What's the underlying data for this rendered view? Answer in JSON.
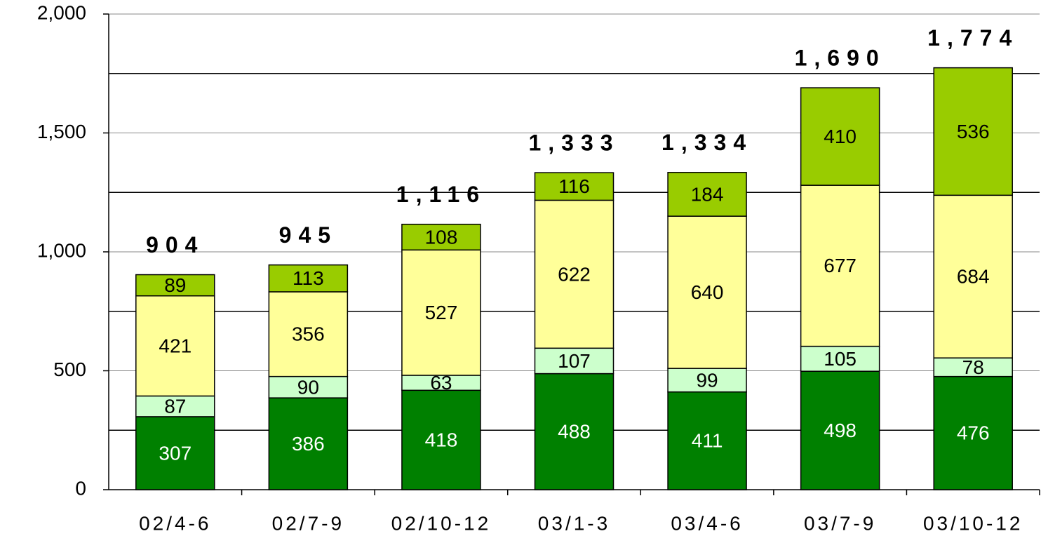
{
  "chart_data": {
    "type": "stacked_bar",
    "categories": [
      "02/4-6",
      "02/7-9",
      "02/10-12",
      "03/1-3",
      "03/4-6",
      "03/7-9",
      "03/10-12"
    ],
    "series": [
      {
        "color": "#008000",
        "values": [
          307,
          386,
          418,
          488,
          411,
          498,
          476
        ]
      },
      {
        "color": "#ccffcc",
        "values": [
          87,
          90,
          63,
          107,
          99,
          105,
          78
        ]
      },
      {
        "color": "#ffff99",
        "values": [
          421,
          356,
          527,
          622,
          640,
          677,
          684
        ]
      },
      {
        "color": "#99cc00",
        "values": [
          89,
          113,
          108,
          116,
          184,
          410,
          536
        ]
      }
    ],
    "totals": [
      904,
      945,
      1116,
      1333,
      1334,
      1690,
      1774
    ],
    "totals_labels": [
      "904",
      "945",
      "1,116",
      "1,333",
      "1,334",
      "1,690",
      "1,774"
    ],
    "ylim": [
      0,
      2000
    ],
    "yticks": [
      0,
      500,
      {
        "value": 1000,
        "label": "1,000"
      },
      {
        "value": 1500,
        "label": "1,500"
      },
      {
        "value": 2000,
        "label": "2,000"
      }
    ],
    "yminor": [
      250,
      750,
      1250,
      1750
    ],
    "grid": true
  }
}
